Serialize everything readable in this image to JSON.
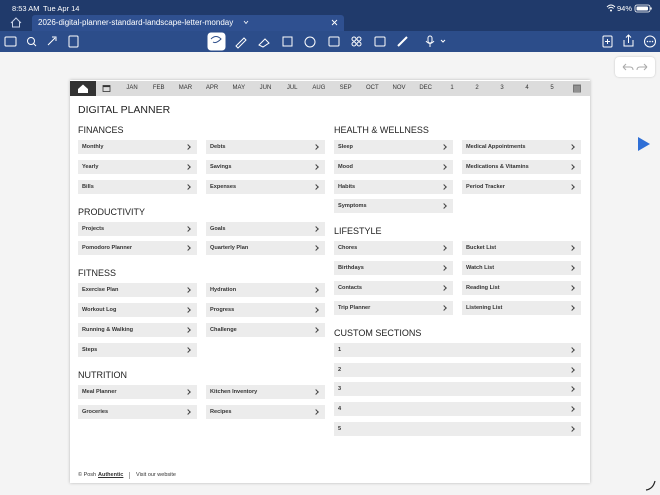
{
  "status": {
    "time": "8:53 AM",
    "date": "Tue Apr 14",
    "battery": "94%"
  },
  "tab": {
    "title": "2026-digital-planner-standard-landscape-letter-monday"
  },
  "nav": {
    "months": [
      "JAN",
      "FEB",
      "MAR",
      "APR",
      "MAY",
      "JUN",
      "JUL",
      "AUG",
      "SEP",
      "OCT",
      "NOV",
      "DEC"
    ],
    "pages": [
      "1",
      "2",
      "3",
      "4",
      "5"
    ]
  },
  "title": "DIGITAL PLANNER",
  "left_column": [
    {
      "title": "FINANCES",
      "items": [
        "Monthly",
        "Debts",
        "Yearly",
        "Savings",
        "Bills",
        "Expenses"
      ]
    },
    {
      "title": "PRODUCTIVITY",
      "items": [
        "Projects",
        "Goals",
        "Pomodoro Planner",
        "Quarterly Plan"
      ]
    },
    {
      "title": "FITNESS",
      "items": [
        "Exercise Plan",
        "Hydration",
        "Workout Log",
        "Progress",
        "Running & Walking",
        "Challenge",
        "Steps"
      ]
    },
    {
      "title": "NUTRITION",
      "items": [
        "Meal Planner",
        "Kitchen Inventory",
        "Groceries",
        "Recipes"
      ]
    }
  ],
  "right_column": [
    {
      "title": "HEALTH & WELLNESS",
      "items": [
        "Sleep",
        "Medical Appointments",
        "Mood",
        "Medications & Vitamins",
        "Habits",
        "Period Tracker",
        "Symptoms"
      ]
    },
    {
      "title": "LIFESTYLE",
      "items": [
        "Chores",
        "Bucket List",
        "Birthdays",
        "Watch List",
        "Contacts",
        "Reading List",
        "Trip Planner",
        "Listening List"
      ]
    }
  ],
  "custom": {
    "title": "CUSTOM SECTIONS",
    "items": [
      "1",
      "2",
      "3",
      "4",
      "5"
    ]
  },
  "footer": {
    "copyright": "© Posh",
    "brand": "Authentic",
    "link": "Visit our website"
  }
}
